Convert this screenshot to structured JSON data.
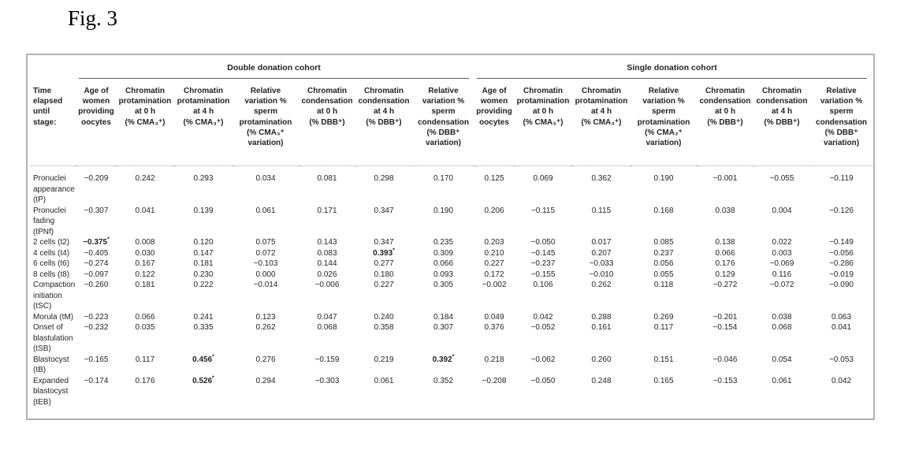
{
  "figure": {
    "label": "Fig. 3"
  },
  "table": {
    "row_header_title": "Time\nelapsed\nuntil\nstage:",
    "groups": [
      {
        "label": "Double donation cohort",
        "columns": [
          "Age of\nwomen\nproviding\noocytes",
          "Chromatin\nprotamination\nat 0 h\n(% CMA₃⁺)",
          "Chromatin\nprotamination\nat 4 h\n(% CMA₃⁺)",
          "Relative\nvariation %\nsperm\nprotamination\n(% CMA₃⁺\nvariation)",
          "Chromatin\ncondensation\nat 0 h\n(% DBB⁺)",
          "Chromatin\ncondensation\nat 4 h\n(% DBB⁺)",
          "Relative\nvariation %\nsperm\ncondensation\n(% DBB⁺\nvariation)"
        ]
      },
      {
        "label": "Single donation cohort",
        "columns": [
          "Age of\nwomen\nproviding\noocytes",
          "Chromatin\nprotamination\nat 0 h\n(% CMA₃⁺)",
          "Chromatin\nprotamination\nat 4 h\n(% CMA₃⁺)",
          "Relative\nvariation %\nsperm\nprotamination\n(% CMA₃⁺\nvariation)",
          "Chromatin\ncondensation\nat 0 h\n(% DBB⁺)",
          "Chromatin\ncondensation\nat 4 h\n(% DBB⁺)",
          "Relative\nvariation %\nsperm\ncondensation\n(% DBB⁺\nvariation)"
        ]
      }
    ],
    "significance_marker": "*",
    "rows": [
      {
        "label": "Pronuclei\nappearance\n(tP)",
        "values": [
          "−0.209",
          "0.242",
          "0.293",
          "0.034",
          "0.081",
          "0.298",
          "0.170",
          "0.125",
          "0.069",
          "0.362",
          "0.190",
          "−0.001",
          "−0.055",
          "−0.119"
        ]
      },
      {
        "label": "Pronuclei\nfading (tPNf)",
        "values": [
          "−0.307",
          "0.041",
          "0.139",
          "0.061",
          "0.171",
          "0.347",
          "0.190",
          "0.206",
          "−0.115",
          "0.115",
          "0.168",
          "0.038",
          "0.004",
          "−0.126"
        ]
      },
      {
        "label": "2 cells (t2)",
        "values": [
          "−0.375*",
          "0.008",
          "0.120",
          "0.075",
          "0.143",
          "0.347",
          "0.235",
          "0.203",
          "−0.050",
          "0.017",
          "0.085",
          "0.138",
          "0.022",
          "−0.149"
        ]
      },
      {
        "label": "4 cells (t4)",
        "values": [
          "−0.405",
          "0.030",
          "0.147",
          "0.072",
          "0.083",
          "0.393*",
          "0.309",
          "0.210",
          "−0.145",
          "0.207",
          "0.237",
          "0.066",
          "0.003",
          "−0.056"
        ]
      },
      {
        "label": "6 cells (t6)",
        "values": [
          "−0.274",
          "0.167",
          "0.181",
          "−0.103",
          "0.144",
          "0.277",
          "0.066",
          "0.227",
          "−0.237",
          "−0.033",
          "0.056",
          "0.176",
          "−0.069",
          "−0.286"
        ]
      },
      {
        "label": "8 cells (t8)",
        "values": [
          "−0.097",
          "0.122",
          "0.230",
          "0.000",
          "0.026",
          "0.180",
          "0.093",
          "0.172",
          "−0.155",
          "−0.010",
          "0.055",
          "0.129",
          "0.116",
          "−0.019"
        ]
      },
      {
        "label": "Compaction\ninitiation\n(tSC)",
        "values": [
          "−0.260",
          "0.181",
          "0.222",
          "−0.014",
          "−0.006",
          "0.227",
          "0.305",
          "−0.002",
          "0.106",
          "0.262",
          "0.118",
          "−0.272",
          "−0.072",
          "−0.090"
        ]
      },
      {
        "label": "Morula (tM)",
        "values": [
          "−0.223",
          "0.066",
          "0.241",
          "0.123",
          "0.047",
          "0.240",
          "0.184",
          "0.049",
          "0.042",
          "0.288",
          "0.269",
          "−0.201",
          "0.038",
          "0.063"
        ]
      },
      {
        "label": "Onset of\nblastulation\n(tSB)",
        "values": [
          "−0.232",
          "0.035",
          "0.335",
          "0.262",
          "0.068",
          "0.358",
          "0.307",
          "0.376",
          "−0.052",
          "0.161",
          "0.117",
          "−0.154",
          "0.068",
          "0.041"
        ]
      },
      {
        "label": "Blastocyst\n(tB)",
        "values": [
          "−0.165",
          "0.117",
          "0.456*",
          "0.276",
          "−0.159",
          "0.219",
          "0.392*",
          "0.218",
          "−0.062",
          "0.260",
          "0.151",
          "−0.046",
          "0.054",
          "−0.053"
        ]
      },
      {
        "label": "Expanded\nblastocyst\n(tEB)",
        "values": [
          "−0.174",
          "0.176",
          "0.526*",
          "0.294",
          "−0.303",
          "0.061",
          "0.352",
          "−0.208",
          "−0.050",
          "0.248",
          "0.165",
          "−0.153",
          "0.061",
          "0.042"
        ]
      }
    ]
  }
}
